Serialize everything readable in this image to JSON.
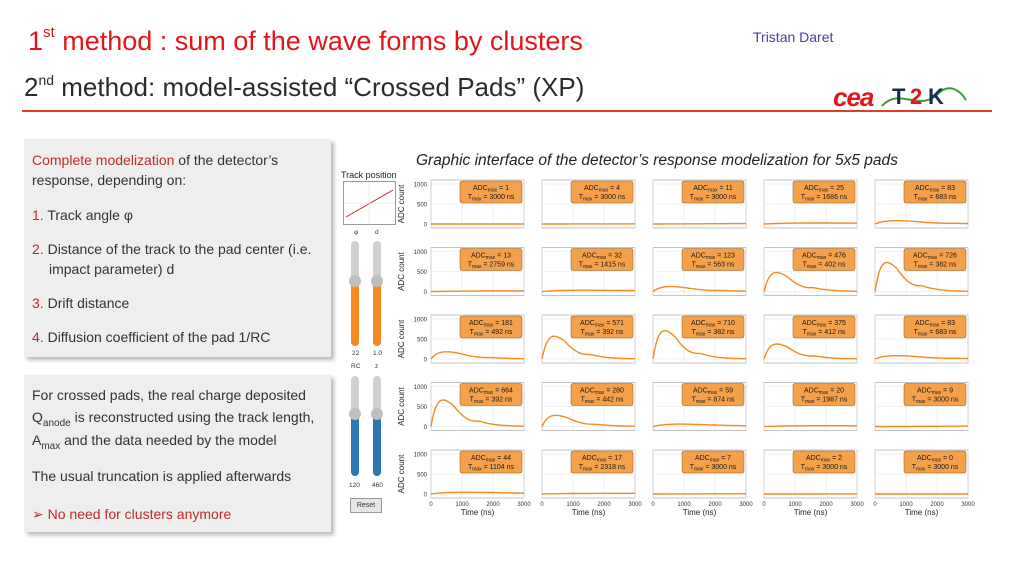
{
  "header": {
    "title1_a": "1",
    "title1_sup": "st",
    "title1_b": " method : sum of the wave forms by clusters",
    "title2_a": "2",
    "title2_sup": "nd",
    "title2_b": " method: model-assisted “Crossed Pads” (XP)",
    "author": "Tristan Daret",
    "logo_cea": "cea",
    "logo_t2k": [
      "T",
      "2",
      "K"
    ]
  },
  "panel1": {
    "intro_hl": "Complete modelization",
    "intro_rest": " of the detector’s",
    "intro_line2": "response, depending on:",
    "items": [
      {
        "num": "1.",
        "text": "Track angle φ"
      },
      {
        "num": "2.",
        "text": "Distance of the track to the pad center (i.e.",
        "text2": "impact parameter) d"
      },
      {
        "num": "3.",
        "text": "Drift distance"
      },
      {
        "num": "4.",
        "text": "Diffusion coefficient of the pad 1/RC"
      }
    ]
  },
  "panel2": {
    "l1": "For crossed pads, the real charge deposited",
    "l2a": "Q",
    "l2sub": "anode",
    "l2b": " is reconstructed using the track length,",
    "l3a": "A",
    "l3sub": "max",
    "l3b": " and the data needed by the model",
    "l4": "The usual truncation is applied afterwards",
    "bullet": "➢",
    "l5": " No need for clusters anymore"
  },
  "gui": {
    "title": "Graphic interface of the detector’s response modelization for 5x5 pads",
    "track_label": "Track position",
    "slider_top_labels": [
      "φ",
      "d"
    ],
    "slider_top_values": [
      "22",
      "1.0"
    ],
    "slider_bottom_labels": [
      "RC",
      "z"
    ],
    "slider_bottom_values": [
      "120",
      "460"
    ],
    "slider_levels": [
      0.62,
      0.62,
      0.62,
      0.62
    ],
    "reset_label": "Reset",
    "colors": {
      "orange": "#f58a20",
      "blue": "#2d78b4",
      "box": "#f5a04a"
    }
  },
  "chart_data": {
    "type": "line",
    "title": "Graphic interface of the detector’s response modelization for 5x5 pads",
    "xlabel": "Time (ns)",
    "ylabel": "ADC count",
    "xlim": [
      0,
      3000
    ],
    "ylim": [
      -100,
      1100
    ],
    "xticks": [
      0,
      1000,
      2000,
      3000
    ],
    "yticks": [
      0,
      500,
      1000
    ],
    "grid": true,
    "pads": [
      [
        {
          "adc_max": "1",
          "t_max": "3000"
        },
        {
          "adc_max": "4",
          "t_max": "3000"
        },
        {
          "adc_max": "11",
          "t_max": "3000"
        },
        {
          "adc_max": "25",
          "t_max": "1686"
        },
        {
          "adc_max": "83",
          "t_max": "683"
        }
      ],
      [
        {
          "adc_max": "13",
          "t_max": "2759"
        },
        {
          "adc_max": "32",
          "t_max": "1415"
        },
        {
          "adc_max": "123",
          "t_max": "563"
        },
        {
          "adc_max": "476",
          "t_max": "402"
        },
        {
          "adc_max": "726",
          "t_max": "382"
        }
      ],
      [
        {
          "adc_max": "181",
          "t_max": "492"
        },
        {
          "adc_max": "571",
          "t_max": "392"
        },
        {
          "adc_max": "710",
          "t_max": "382"
        },
        {
          "adc_max": "375",
          "t_max": "412"
        },
        {
          "adc_max": "83",
          "t_max": "683"
        }
      ],
      [
        {
          "adc_max": "664",
          "t_max": "392"
        },
        {
          "adc_max": "280",
          "t_max": "442"
        },
        {
          "adc_max": "59",
          "t_max": "874"
        },
        {
          "adc_max": "20",
          "t_max": "1987"
        },
        {
          "adc_max": "9",
          "t_max": "3000"
        }
      ],
      [
        {
          "adc_max": "44",
          "t_max": "1104"
        },
        {
          "adc_max": "17",
          "t_max": "2318"
        },
        {
          "adc_max": "7",
          "t_max": "3000"
        },
        {
          "adc_max": "2",
          "t_max": "3000"
        },
        {
          "adc_max": "0",
          "t_max": "3000"
        }
      ]
    ],
    "label_prefix_adc": "ADC",
    "label_sub_adc": "max",
    "label_prefix_t": "T",
    "label_sub_t": "max",
    "unit_t": "ns"
  }
}
